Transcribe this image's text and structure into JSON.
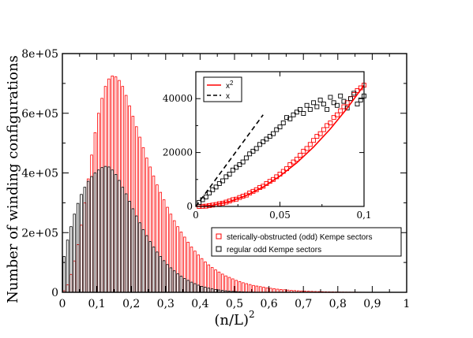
{
  "chart_data": [
    {
      "type": "bar",
      "xlabel": "(n/L)",
      "xlabel_superscript": "2",
      "ylabel": "Number of winding configurations",
      "xlim": [
        0,
        1
      ],
      "ylim": [
        0,
        800000
      ],
      "x_ticks": [
        0,
        0.1,
        0.2,
        0.3,
        0.4,
        0.5,
        0.6,
        0.7,
        0.8,
        0.9,
        1
      ],
      "x_tick_labels": [
        "0",
        "0,1",
        "0,2",
        "0,3",
        "0,4",
        "0,5",
        "0,6",
        "0,7",
        "0,8",
        "0,9",
        "1"
      ],
      "y_ticks": [
        0,
        200000,
        400000,
        600000,
        800000
      ],
      "y_tick_labels": [
        "0",
        "2e+05",
        "4e+05",
        "6e+05",
        "8e+05"
      ],
      "grid": false,
      "legend_position": "lower-right",
      "bin_width": 0.01,
      "series": [
        {
          "name": "sterically-obstructed (odd) Kempe sectors",
          "color": "#ff0000",
          "x": [
            0.005,
            0.015,
            0.025,
            0.035,
            0.045,
            0.055,
            0.065,
            0.075,
            0.085,
            0.095,
            0.105,
            0.115,
            0.125,
            0.135,
            0.145,
            0.155,
            0.165,
            0.175,
            0.185,
            0.195,
            0.205,
            0.215,
            0.225,
            0.235,
            0.245,
            0.255,
            0.265,
            0.275,
            0.285,
            0.295,
            0.305,
            0.315,
            0.325,
            0.335,
            0.345,
            0.355,
            0.365,
            0.375,
            0.385,
            0.395,
            0.405,
            0.415,
            0.425,
            0.435,
            0.445,
            0.455,
            0.465,
            0.475,
            0.485,
            0.495,
            0.505,
            0.515,
            0.525,
            0.535,
            0.545,
            0.555,
            0.565,
            0.575,
            0.585,
            0.595,
            0.605,
            0.615,
            0.625,
            0.635,
            0.645,
            0.655,
            0.665,
            0.675,
            0.685,
            0.695,
            0.705,
            0.715,
            0.725,
            0.735,
            0.745,
            0.755,
            0.765,
            0.775,
            0.785,
            0.795,
            0.805,
            0.815,
            0.825,
            0.835,
            0.845,
            0.855,
            0.865,
            0.875,
            0.885,
            0.895
          ],
          "values": [
            5000,
            25000,
            60000,
            105000,
            160000,
            225000,
            300000,
            380000,
            460000,
            535000,
            600000,
            650000,
            690000,
            715000,
            725000,
            722000,
            710000,
            690000,
            660000,
            625000,
            590000,
            555000,
            520000,
            485000,
            450000,
            420000,
            390000,
            360000,
            335000,
            310000,
            285000,
            262000,
            240000,
            220000,
            202000,
            185000,
            168000,
            152000,
            138000,
            125000,
            113000,
            102000,
            92000,
            83000,
            75000,
            68000,
            61000,
            55000,
            50000,
            45000,
            40000,
            36000,
            32000,
            29000,
            26000,
            23000,
            21000,
            19000,
            17000,
            15000,
            13500,
            12000,
            10500,
            9500,
            8500,
            7500,
            6500,
            5800,
            5100,
            4500,
            4000,
            3500,
            3100,
            2700,
            2400,
            2100,
            1800,
            1600,
            1400,
            1200,
            1000,
            900,
            800,
            700,
            600,
            500,
            400,
            350,
            300,
            250
          ]
        },
        {
          "name": "regular odd Kempe sectors",
          "color": "#000000",
          "x": [
            0.005,
            0.015,
            0.025,
            0.035,
            0.045,
            0.055,
            0.065,
            0.075,
            0.085,
            0.095,
            0.105,
            0.115,
            0.125,
            0.135,
            0.145,
            0.155,
            0.165,
            0.175,
            0.185,
            0.195,
            0.205,
            0.215,
            0.225,
            0.235,
            0.245,
            0.255,
            0.265,
            0.275,
            0.285,
            0.295,
            0.305,
            0.315,
            0.325,
            0.335,
            0.345,
            0.355,
            0.365,
            0.375,
            0.385,
            0.395,
            0.405,
            0.415,
            0.425,
            0.435,
            0.445,
            0.455,
            0.465,
            0.475,
            0.485,
            0.495,
            0.505,
            0.515,
            0.525,
            0.535,
            0.545,
            0.555,
            0.565,
            0.575,
            0.585,
            0.595
          ],
          "values": [
            120000,
            175000,
            220000,
            262000,
            298000,
            328000,
            352000,
            372000,
            388000,
            400000,
            410000,
            418000,
            422000,
            420000,
            410000,
            395000,
            375000,
            352000,
            330000,
            305000,
            280000,
            256000,
            233000,
            210000,
            190000,
            170000,
            152000,
            135000,
            120000,
            106000,
            93000,
            82000,
            72000,
            62000,
            54000,
            46000,
            40000,
            34000,
            29000,
            24000,
            20000,
            17000,
            14000,
            11500,
            9500,
            7800,
            6300,
            5000,
            4000,
            3200,
            2500,
            2000,
            1500,
            1100,
            800,
            600,
            400,
            300,
            200,
            100
          ]
        }
      ]
    },
    {
      "type": "scatter",
      "xlim": [
        0,
        0.1
      ],
      "ylim": [
        0,
        50000
      ],
      "x_ticks": [
        0,
        0.05,
        0.1
      ],
      "x_tick_labels": [
        "0",
        "0,05",
        "0,1"
      ],
      "y_ticks": [
        0,
        20000,
        40000
      ],
      "y_tick_labels": [
        "0",
        "20000",
        "40000"
      ],
      "grid": false,
      "legend_position": "top-left",
      "series": [
        {
          "color": "#ff0000",
          "marker": "square",
          "x": [
            0.002,
            0.004,
            0.006,
            0.008,
            0.01,
            0.012,
            0.014,
            0.016,
            0.018,
            0.02,
            0.022,
            0.024,
            0.026,
            0.028,
            0.03,
            0.032,
            0.034,
            0.036,
            0.038,
            0.04,
            0.042,
            0.044,
            0.046,
            0.048,
            0.05,
            0.052,
            0.054,
            0.056,
            0.058,
            0.06,
            0.062,
            0.064,
            0.066,
            0.068,
            0.07,
            0.072,
            0.074,
            0.076,
            0.078,
            0.08,
            0.082,
            0.084,
            0.086,
            0.088,
            0.09,
            0.092,
            0.094,
            0.096,
            0.098,
            0.1
          ],
          "y": [
            0,
            50,
            100,
            300,
            500,
            700,
            1000,
            1200,
            1600,
            2000,
            2500,
            2700,
            3300,
            3800,
            4200,
            5000,
            5600,
            6200,
            7000,
            7500,
            8500,
            9300,
            10000,
            11000,
            12000,
            13000,
            14000,
            15500,
            16500,
            17500,
            19000,
            20500,
            21500,
            23000,
            24500,
            26000,
            27000,
            28500,
            30000,
            31000,
            33000,
            34000,
            35500,
            37000,
            38500,
            40000,
            41500,
            43000,
            44000,
            45000
          ]
        },
        {
          "color": "#000000",
          "marker": "square",
          "x": [
            0.002,
            0.004,
            0.006,
            0.008,
            0.01,
            0.012,
            0.014,
            0.016,
            0.018,
            0.02,
            0.022,
            0.024,
            0.026,
            0.028,
            0.03,
            0.032,
            0.034,
            0.036,
            0.038,
            0.04,
            0.042,
            0.044,
            0.046,
            0.048,
            0.05,
            0.052,
            0.054,
            0.056,
            0.058,
            0.06,
            0.062,
            0.064,
            0.066,
            0.068,
            0.07,
            0.072,
            0.074,
            0.076,
            0.078,
            0.08,
            0.082,
            0.084,
            0.086,
            0.088,
            0.09,
            0.092,
            0.094,
            0.096,
            0.098,
            0.1
          ],
          "y": [
            1500,
            2500,
            3500,
            5000,
            6200,
            7200,
            8500,
            9500,
            11000,
            12000,
            13500,
            14500,
            15500,
            16500,
            18000,
            19500,
            20500,
            21500,
            23000,
            24000,
            25000,
            26000,
            27000,
            28500,
            29500,
            31000,
            33000,
            32500,
            34000,
            35000,
            36000,
            34500,
            37500,
            36000,
            38500,
            37000,
            39500,
            38000,
            36000,
            40500,
            38500,
            37500,
            41000,
            39000,
            36500,
            40000,
            42000,
            38000,
            39500,
            41000
          ]
        },
        {
          "name": "x",
          "superscript": "2",
          "color": "#ff0000",
          "line": "solid",
          "x": [
            0,
            0.01,
            0.02,
            0.03,
            0.04,
            0.05,
            0.06,
            0.07,
            0.08,
            0.09,
            0.1
          ],
          "y": [
            0,
            450,
            1800,
            4050,
            7200,
            11250,
            16200,
            22050,
            28800,
            36450,
            45000
          ]
        },
        {
          "name": "x",
          "color": "#000000",
          "line": "dashed",
          "x": [
            0,
            0.01,
            0.02,
            0.03,
            0.04
          ],
          "y": [
            0,
            8500,
            17000,
            25500,
            34000
          ]
        }
      ]
    }
  ]
}
